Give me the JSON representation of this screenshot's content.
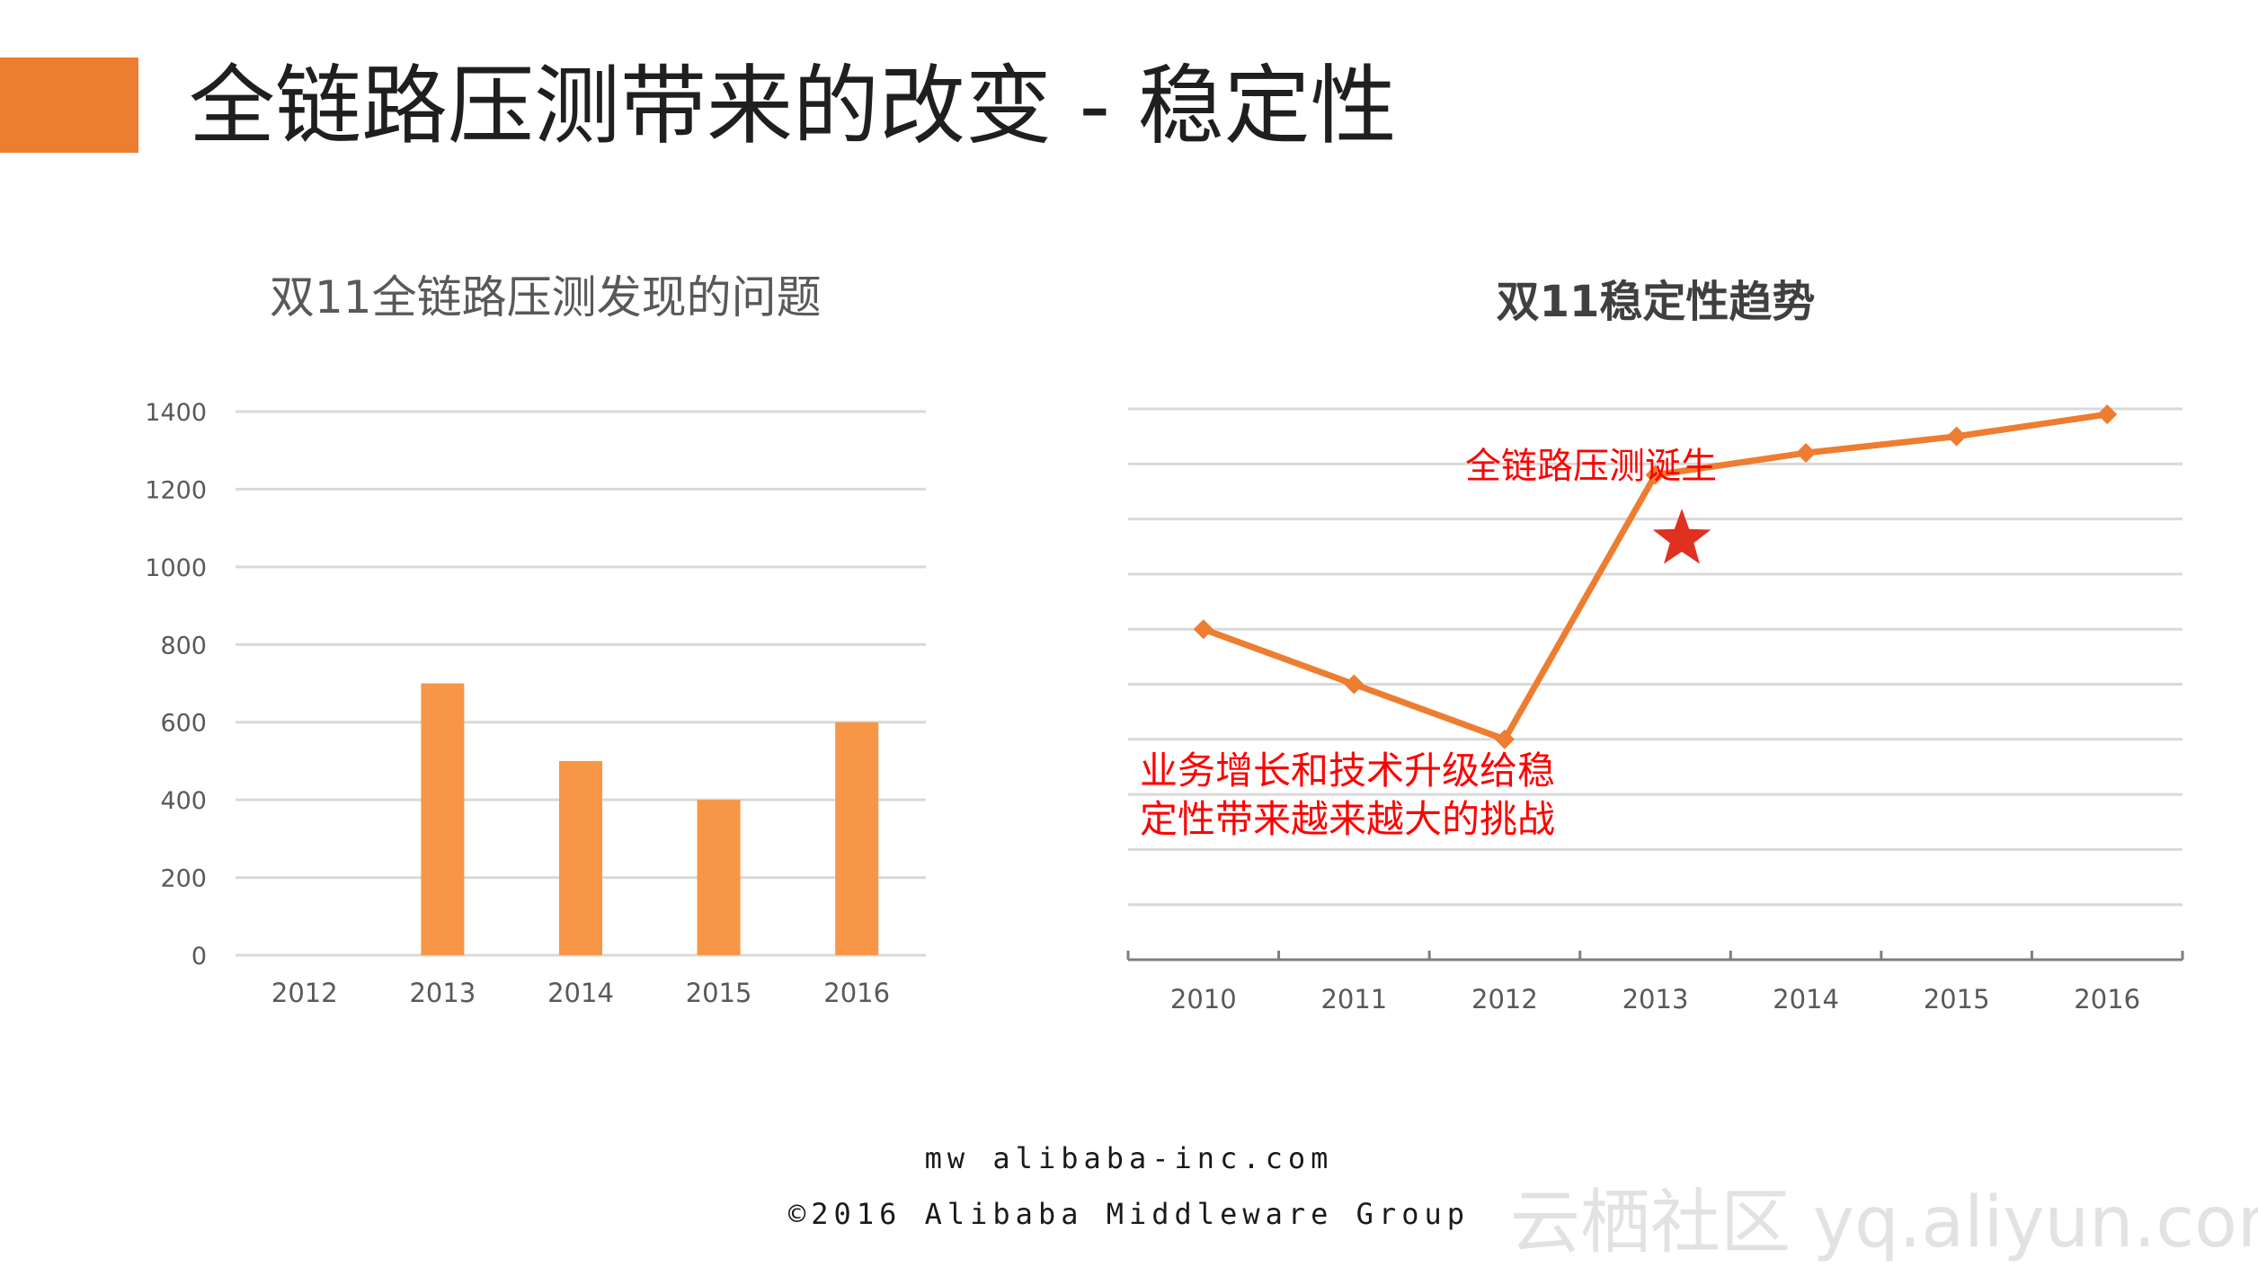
{
  "title": "全链路压测带来的改变 - 稳定性",
  "accent_color": "#ED7D31",
  "footer": {
    "url": "mw alibaba-inc.com",
    "copyright": "©2016 Alibaba Middleware Group"
  },
  "watermark": "云栖社区 yq.aliyun.com",
  "chart_data": [
    {
      "type": "bar",
      "title": "双11全链路压测发现的问题",
      "categories": [
        "2012",
        "2013",
        "2014",
        "2015",
        "2016"
      ],
      "values": [
        0,
        700,
        500,
        400,
        600
      ],
      "ylim": [
        0,
        1400
      ],
      "yticks": [
        0,
        200,
        400,
        600,
        800,
        1000,
        1200,
        1400
      ],
      "xlabel": "",
      "ylabel": "",
      "grid": true,
      "bar_color": "#F79646"
    },
    {
      "type": "line",
      "title": "双11稳定性趋势",
      "categories": [
        "2010",
        "2011",
        "2012",
        "2013",
        "2014",
        "2015",
        "2016"
      ],
      "values": [
        6,
        5,
        4,
        8.8,
        9.2,
        9.5,
        9.9
      ],
      "ylim": [
        0,
        10
      ],
      "xlabel": "",
      "ylabel": "",
      "grid": true,
      "line_color": "#ED7D31",
      "annotations": [
        {
          "text": "全链路压测诞生",
          "near": "2013",
          "color": "#FF0000"
        },
        {
          "text_lines": [
            "业务增长和技术升级给稳",
            "定性带来越来越大的挑战"
          ],
          "near": "2010-2012",
          "color": "#FF0000"
        }
      ],
      "star_marker": {
        "near": "2013",
        "color": "#E03020"
      }
    }
  ]
}
